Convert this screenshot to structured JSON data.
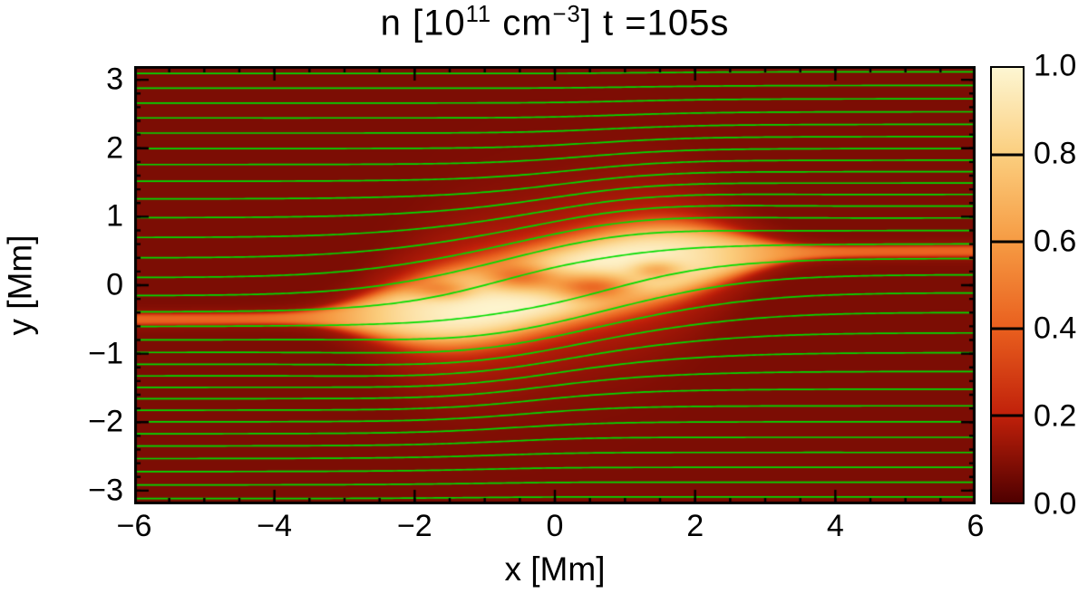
{
  "figure": {
    "title": {
      "prefix": "n [10",
      "exponent1": "11",
      "mid": " cm",
      "exponent2": "−3",
      "suffix": "] t =105s"
    },
    "xlabel": "x [Mm]",
    "ylabel": "y [Mm]"
  },
  "chart_data": {
    "type": "heatmap",
    "title": "n [10^11 cm^-3] t =105s",
    "xlabel": "x [Mm]",
    "ylabel": "y [Mm]",
    "xlim": [
      -6,
      6
    ],
    "ylim": [
      -3.2,
      3.2
    ],
    "x_ticks": [
      -6,
      -4,
      -2,
      0,
      2,
      4,
      6
    ],
    "x_tick_labels": [
      "−6",
      "−4",
      "−2",
      "0",
      "2",
      "4",
      "6"
    ],
    "x_minor_step": 0.5,
    "y_ticks": [
      -3,
      -2,
      -1,
      0,
      1,
      2,
      3
    ],
    "y_tick_labels": [
      "−3",
      "−2",
      "−1",
      "0",
      "1",
      "2",
      "3"
    ],
    "y_minor_step": 0.2,
    "grid": false,
    "legend": null,
    "colorbar": {
      "range": [
        0,
        1
      ],
      "ticks": [
        0,
        0.2,
        0.4,
        0.6,
        0.8,
        1
      ],
      "tick_labels": [
        "0.0",
        "0.2",
        "0.4",
        "0.6",
        "0.8",
        "1.0"
      ],
      "position": "right"
    },
    "colormap": {
      "positions": [
        0,
        0.2,
        0.4,
        0.6,
        0.8,
        1
      ],
      "colors": [
        "#4f0000",
        "#c0200a",
        "#e95f1e",
        "#f69b43",
        "#fbce7e",
        "#fdf6d2"
      ]
    },
    "background_value": 0.08,
    "current_sheet": {
      "description": "bright tilted reconnection current sheet with internal plasmoid voids, thin arms reaching both x edges",
      "centerline_amplitude_mm": 0.5,
      "centerline_scale_mm": 1.9,
      "arm_half_width_mm": 0.08,
      "core_half_width_mm": 0.62,
      "core_length_mm": 2.7,
      "arm_value": 0.42,
      "peak_value": 1.0,
      "bright_length_mm": 3.1,
      "plasmoids": [
        {
          "x": -0.5,
          "y": 0.12,
          "sx": 0.55,
          "sy": 0.2,
          "depth": 0.5
        },
        {
          "x": 0.55,
          "y": -0.03,
          "sx": 0.6,
          "sy": 0.2,
          "depth": 0.55
        },
        {
          "x": -1.6,
          "y": -0.07,
          "sx": 0.45,
          "sy": 0.14,
          "depth": 0.35
        },
        {
          "x": 1.45,
          "y": 0.22,
          "sx": 0.35,
          "sy": 0.13,
          "depth": 0.3
        }
      ]
    },
    "field_lines": {
      "count": 30,
      "color": "#00dd00",
      "width": 1.7,
      "s_scale_mm": 1.5,
      "bulge_amplitude_mm": 0.35,
      "bulge_x_scale_mm": 2.4,
      "bulge_y_scale_mm": 1.2
    }
  }
}
